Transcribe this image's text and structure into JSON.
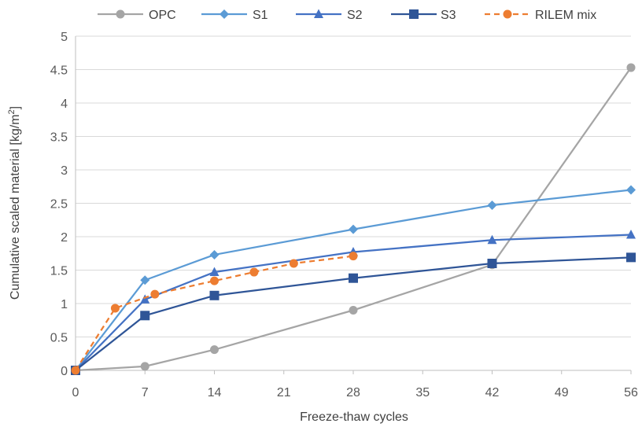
{
  "chart_data": {
    "type": "line",
    "xlabel": "Freeze-thaw cycles",
    "ylabel": "Cumulative scaled material [kg/m",
    "ylabel_sup": "2",
    "ylabel_close": "]",
    "xlim": [
      0,
      56
    ],
    "ylim": [
      0,
      5
    ],
    "x_ticks": [
      "0",
      "7",
      "14",
      "21",
      "28",
      "35",
      "42",
      "49",
      "56"
    ],
    "y_ticks": [
      "0",
      "0.5",
      "1",
      "1.5",
      "2",
      "2.5",
      "3",
      "3.5",
      "4",
      "4.5",
      "5"
    ],
    "grid": "horizontal",
    "legend_position": "top",
    "series": [
      {
        "name": "OPC",
        "color": "#a5a5a5",
        "marker": "circle",
        "dashed": false,
        "x": [
          0,
          7,
          14,
          28,
          42,
          56
        ],
        "y": [
          0,
          0.06,
          0.31,
          0.9,
          1.58,
          4.53
        ]
      },
      {
        "name": "S1",
        "color": "#5b9bd5",
        "marker": "diamond",
        "dashed": false,
        "x": [
          0,
          7,
          14,
          28,
          42,
          56
        ],
        "y": [
          0,
          1.35,
          1.73,
          2.11,
          2.47,
          2.7
        ]
      },
      {
        "name": "S2",
        "color": "#4472c4",
        "marker": "triangle",
        "dashed": false,
        "x": [
          0,
          7,
          14,
          28,
          42,
          56
        ],
        "y": [
          0,
          1.06,
          1.47,
          1.77,
          1.95,
          2.03
        ]
      },
      {
        "name": "S3",
        "color": "#2f5597",
        "marker": "square",
        "dashed": false,
        "x": [
          0,
          7,
          14,
          28,
          42,
          56
        ],
        "y": [
          0,
          0.82,
          1.12,
          1.38,
          1.6,
          1.69
        ]
      },
      {
        "name": "RILEM mix",
        "color": "#ed7d31",
        "marker": "circle",
        "dashed": true,
        "x": [
          0,
          4,
          8,
          14,
          18,
          22,
          28
        ],
        "y": [
          0,
          0.93,
          1.14,
          1.34,
          1.47,
          1.6,
          1.71
        ]
      }
    ]
  }
}
